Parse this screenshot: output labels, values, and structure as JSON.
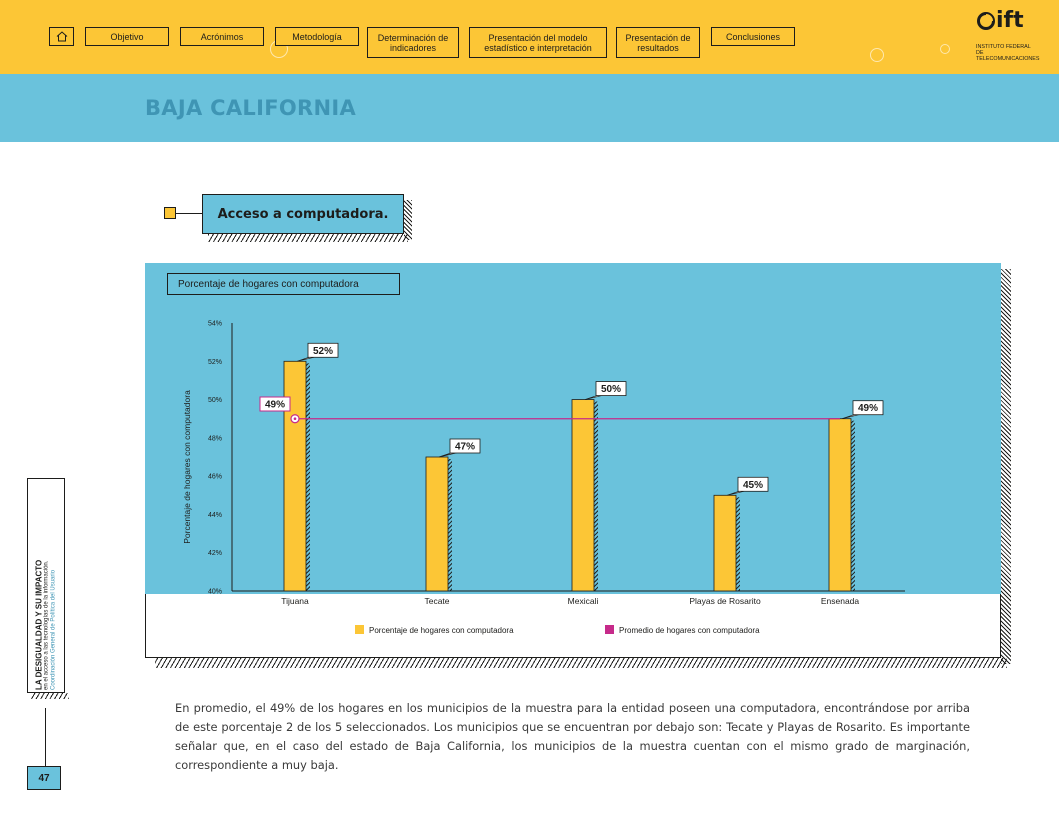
{
  "nav": {
    "home_icon": "home-icon",
    "items": [
      {
        "label": "Objetivo"
      },
      {
        "label": "Acrónimos"
      },
      {
        "label": "Metodología"
      },
      {
        "label": "Determinación de indicadores"
      },
      {
        "label": "Presentación del modelo estadístico e interpretación"
      },
      {
        "label": "Presentación de resultados"
      },
      {
        "label": "Conclusiones"
      }
    ]
  },
  "logo": {
    "mark": "ift",
    "subtitle": "INSTITUTO FEDERAL DE TELECOMUNICACIONES"
  },
  "state_title": "BAJA CALIFORNIA",
  "section_title": "Acceso a computadora.",
  "chart_box_title": "Porcentaje de hogares con computadora",
  "chart_data": {
    "type": "bar",
    "categories": [
      "Tijuana",
      "Tecate",
      "Mexicali",
      "Playas de Rosarito",
      "Ensenada"
    ],
    "series": [
      {
        "name": "Porcentaje de hogares con computadora",
        "values": [
          52,
          47,
          50,
          45,
          49
        ],
        "color": "#fcc636"
      },
      {
        "name": "Promedio de hogares con computadora",
        "values": [
          49,
          49,
          49,
          49,
          49
        ],
        "color": "#c62a8a"
      }
    ],
    "data_labels": [
      "52%",
      "47%",
      "50%",
      "45%",
      "49%"
    ],
    "average_label": "49%",
    "ylabel": "Porcentaje de hogares con computadora",
    "ylim": [
      40,
      54
    ],
    "yticks": [
      40,
      42,
      44,
      46,
      48,
      50,
      52,
      54
    ],
    "ytick_labels": [
      "40%",
      "42%",
      "44%",
      "46%",
      "48%",
      "50%",
      "52%",
      "54%"
    ],
    "legend_position": "bottom",
    "grid": false
  },
  "body_text": "En promedio, el 49% de los hogares en los municipios de la muestra para la entidad poseen una computadora, encontrándose por arriba de este porcentaje 2 de los 5 seleccionados. Los municipios que se encuentran por debajo son: Tecate y Playas de Rosarito. Es importante señalar que, en el caso del estado de Baja California, los municipios de la muestra cuentan con el mismo grado de marginación, correspondiente a muy baja.",
  "sidebar": {
    "title": "LA DESIGUALDAD Y SU IMPACTO",
    "subtitle": "en el acceso a las tecnologías de la información.",
    "org": "Coordinación General de Política del Usuario"
  },
  "page_number": "47"
}
